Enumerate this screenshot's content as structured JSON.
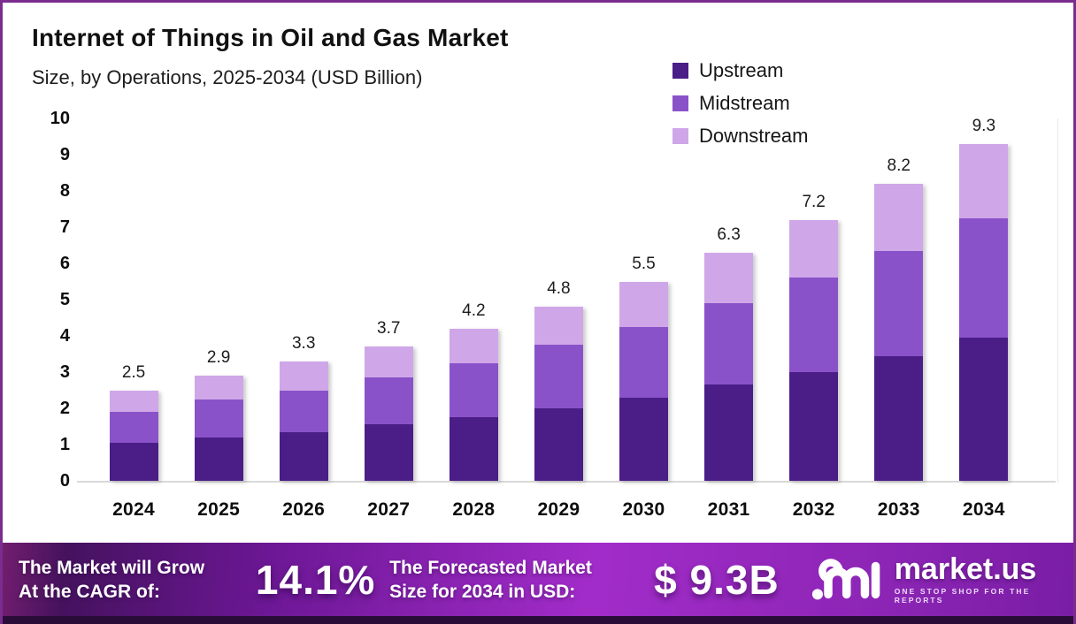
{
  "header": {
    "title": "Internet of Things in Oil and Gas Market",
    "subtitle": "Size, by Operations, 2025-2034 (USD Billion)"
  },
  "chart_data": {
    "type": "bar",
    "stacked": true,
    "categories": [
      "2024",
      "2025",
      "2026",
      "2027",
      "2028",
      "2029",
      "2030",
      "2031",
      "2032",
      "2033",
      "2034"
    ],
    "series": [
      {
        "name": "Upstream",
        "color": "#4a1d87",
        "values": [
          1.05,
          1.2,
          1.35,
          1.55,
          1.75,
          2.0,
          2.3,
          2.65,
          3.0,
          3.45,
          3.95
        ]
      },
      {
        "name": "Midstream",
        "color": "#8a52c9",
        "values": [
          0.85,
          1.05,
          1.15,
          1.3,
          1.5,
          1.75,
          1.95,
          2.25,
          2.6,
          2.9,
          3.3
        ]
      },
      {
        "name": "Downstream",
        "color": "#cfa7e8",
        "values": [
          0.6,
          0.65,
          0.8,
          0.85,
          0.95,
          1.05,
          1.25,
          1.4,
          1.6,
          1.85,
          2.05
        ]
      }
    ],
    "totals": [
      "2.5",
      "2.9",
      "3.3",
      "3.7",
      "4.2",
      "4.8",
      "5.5",
      "6.3",
      "7.2",
      "8.2",
      "9.3"
    ],
    "title": "Internet of Things in Oil and Gas Market",
    "xlabel": "",
    "ylabel": "",
    "ylim": [
      0,
      10
    ],
    "yticks": [
      0,
      1,
      2,
      3,
      4,
      5,
      6,
      7,
      8,
      9,
      10
    ],
    "grid": false,
    "legend_position": "top-right"
  },
  "footer": {
    "cagr_line1": "The Market will Grow",
    "cagr_line2": "At the CAGR of:",
    "cagr_value": "14.1%",
    "forecast_line1": "The Forecasted Market",
    "forecast_line2": "Size for 2034 in USD:",
    "forecast_value": "$ 9.3B",
    "brand_name": "market.us",
    "brand_tagline": "ONE STOP SHOP FOR THE REPORTS"
  },
  "colors": {
    "border": "#7b2c8e",
    "banner_dark": "#45125e",
    "banner_bright": "#a22cc9",
    "bottom_strip": "#2a0c38",
    "axis_line": "#d9d9d9"
  }
}
